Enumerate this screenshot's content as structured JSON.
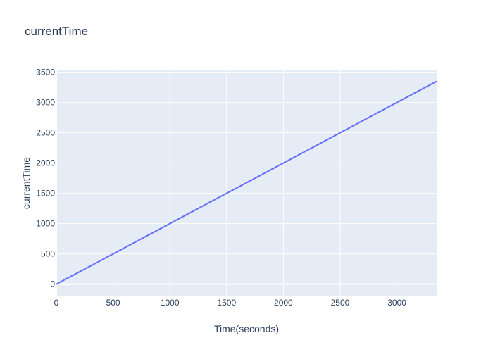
{
  "chart_data": {
    "type": "line",
    "title": "currentTime",
    "xlabel": "Time(seconds)",
    "ylabel": "currentTime",
    "xlim": [
      0,
      3350
    ],
    "ylim": [
      -190,
      3530
    ],
    "x_ticks": [
      0,
      500,
      1000,
      1500,
      2000,
      2500,
      3000
    ],
    "y_ticks": [
      0,
      500,
      1000,
      1500,
      2000,
      2500,
      3000,
      3500
    ],
    "grid": true,
    "series": [
      {
        "x": [
          0,
          3350
        ],
        "y": [
          0,
          3350
        ],
        "color": "#636efa"
      }
    ],
    "colors": {
      "plot_bg": "#e5ecf6",
      "grid": "#ffffff",
      "text": "#2a3f5f",
      "zero_line": "#ffffff"
    }
  }
}
